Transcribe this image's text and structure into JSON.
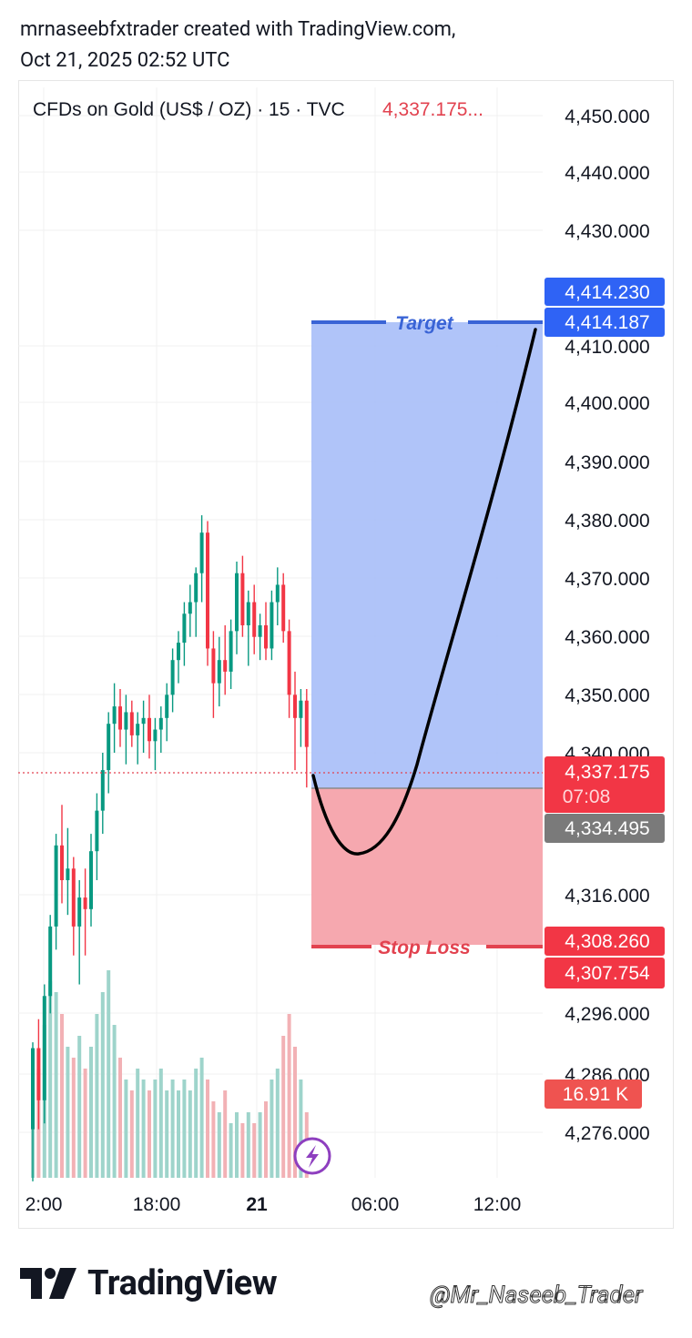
{
  "header": {
    "line1": "mrnaseebfxtrader created with TradingView.com,",
    "line2": "Oct 21, 2025 02:52 UTC"
  },
  "chart_data": {
    "type": "candlestick",
    "title": "CFDs on Gold (US$ / OZ) · 15 · TVC",
    "last_price_text": "4,337.175...",
    "y_ticks": [
      "4,276.000",
      "4,286.000",
      "4,296.000",
      "4,316.000",
      "4,340.000",
      "4,350.000",
      "4,360.000",
      "4,370.000",
      "4,380.000",
      "4,390.000",
      "4,400.000",
      "4,410.000",
      "4,430.000",
      "4,440.000",
      "4,450.000"
    ],
    "x_ticks": [
      "2:00",
      "18:00",
      "21",
      "06:00",
      "12:00"
    ],
    "price_labels": {
      "target_top": "4,414.230",
      "target": "4,414.187",
      "current": "4,337.175",
      "countdown": "07:08",
      "entry": "4,334.495",
      "stop_top": "4,308.260",
      "stop": "4,307.754",
      "volume": "16.91 K"
    },
    "annotations": {
      "target": "Target",
      "stop": "Stop Loss"
    },
    "candles": [
      [
        4275,
        4290,
        4266,
        4289
      ],
      [
        4289,
        4294,
        4275,
        4280
      ],
      [
        4280,
        4300,
        4276,
        4298
      ],
      [
        4298,
        4312,
        4295,
        4310
      ],
      [
        4310,
        4326,
        4306,
        4324
      ],
      [
        4324,
        4331,
        4314,
        4318
      ],
      [
        4318,
        4327,
        4312,
        4320
      ],
      [
        4320,
        4322,
        4305,
        4310
      ],
      [
        4310,
        4318,
        4300,
        4315
      ],
      [
        4315,
        4320,
        4305,
        4313
      ],
      [
        4313,
        4326,
        4310,
        4323
      ],
      [
        4323,
        4333,
        4318,
        4330
      ],
      [
        4330,
        4340,
        4326,
        4337
      ],
      [
        4337,
        4347,
        4333,
        4345
      ],
      [
        4345,
        4352,
        4340,
        4348
      ],
      [
        4348,
        4351,
        4341,
        4344
      ],
      [
        4344,
        4350,
        4338,
        4347
      ],
      [
        4347,
        4349,
        4341,
        4343
      ],
      [
        4343,
        4347,
        4338,
        4345
      ],
      [
        4345,
        4349,
        4340,
        4346
      ],
      [
        4346,
        4350,
        4339,
        4342
      ],
      [
        4342,
        4346,
        4337,
        4344
      ],
      [
        4344,
        4348,
        4340,
        4346
      ],
      [
        4346,
        4352,
        4342,
        4350
      ],
      [
        4350,
        4358,
        4347,
        4356
      ],
      [
        4356,
        4361,
        4352,
        4359
      ],
      [
        4359,
        4366,
        4355,
        4364
      ],
      [
        4364,
        4369,
        4360,
        4366
      ],
      [
        4366,
        4372,
        4360,
        4371
      ],
      [
        4371,
        4381,
        4366,
        4378
      ],
      [
        4378,
        4380,
        4355,
        4358
      ],
      [
        4358,
        4361,
        4346,
        4352
      ],
      [
        4352,
        4360,
        4348,
        4356
      ],
      [
        4356,
        4362,
        4350,
        4354
      ],
      [
        4354,
        4363,
        4351,
        4361
      ],
      [
        4361,
        4373,
        4357,
        4371
      ],
      [
        4371,
        4374,
        4360,
        4362
      ],
      [
        4362,
        4368,
        4355,
        4366
      ],
      [
        4366,
        4369,
        4357,
        4360
      ],
      [
        4360,
        4364,
        4356,
        4362
      ],
      [
        4362,
        4366,
        4356,
        4358
      ],
      [
        4358,
        4368,
        4356,
        4366
      ],
      [
        4366,
        4372,
        4362,
        4369
      ],
      [
        4369,
        4371,
        4359,
        4361
      ],
      [
        4361,
        4363,
        4346,
        4350
      ],
      [
        4350,
        4354,
        4337,
        4346
      ],
      [
        4346,
        4351,
        4341,
        4349
      ],
      [
        4349,
        4351,
        4334,
        4341
      ]
    ],
    "volumes": [
      0.7,
      1.0,
      1.4,
      1.8,
      1.7,
      1.5,
      1.2,
      1.1,
      1.3,
      1.0,
      1.2,
      1.5,
      1.7,
      1.9,
      1.4,
      1.1,
      0.9,
      0.8,
      1.0,
      0.9,
      0.8,
      0.9,
      1.0,
      0.8,
      0.9,
      0.8,
      0.9,
      0.8,
      1.0,
      1.1,
      0.9,
      0.7,
      0.6,
      0.8,
      0.5,
      0.6,
      0.5,
      0.6,
      0.5,
      0.6,
      0.7,
      0.9,
      1.0,
      1.3,
      1.5,
      1.2,
      0.9,
      0.6
    ]
  },
  "footer": {
    "logo_text": "TradingView",
    "watermark": "@Mr_Naseeb_Trader"
  }
}
